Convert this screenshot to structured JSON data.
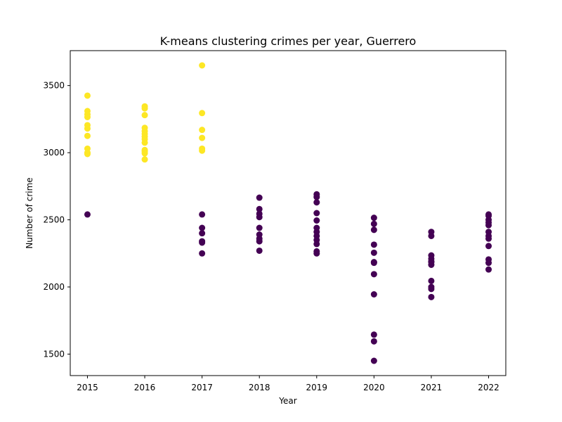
{
  "chart_data": {
    "type": "scatter",
    "title": "K-means clustering crimes per year, Guerrero",
    "xlabel": "Year",
    "ylabel": "Number of crime",
    "xlim": [
      2014.7,
      2022.3
    ],
    "ylim": [
      1340,
      3760
    ],
    "xticks": [
      2015,
      2016,
      2017,
      2018,
      2019,
      2020,
      2021,
      2022
    ],
    "yticks": [
      1500,
      2000,
      2500,
      3000,
      3500
    ],
    "grid": false,
    "cluster_colors": {
      "0": "#440154",
      "1": "#fde725"
    },
    "series": [
      {
        "name": "Cluster 0",
        "cluster": 0,
        "x": [
          2015,
          2017,
          2017,
          2017,
          2017,
          2017,
          2017,
          2018,
          2018,
          2018,
          2018,
          2018,
          2018,
          2018,
          2018,
          2018,
          2019,
          2019,
          2019,
          2019,
          2019,
          2019,
          2019,
          2019,
          2019,
          2019,
          2019,
          2019,
          2020,
          2020,
          2020,
          2020,
          2020,
          2020,
          2020,
          2020,
          2020,
          2020,
          2020,
          2020,
          2021,
          2021,
          2021,
          2021,
          2021,
          2021,
          2021,
          2021,
          2021,
          2021,
          2021,
          2022,
          2022,
          2022,
          2022,
          2022,
          2022,
          2022,
          2022,
          2022,
          2022,
          2022,
          2022
        ],
        "y": [
          2540,
          2540,
          2440,
          2400,
          2340,
          2330,
          2250,
          2665,
          2580,
          2545,
          2520,
          2440,
          2390,
          2360,
          2340,
          2270,
          2690,
          2670,
          2630,
          2550,
          2495,
          2440,
          2410,
          2380,
          2350,
          2320,
          2265,
          2250,
          2515,
          2470,
          2425,
          2315,
          2255,
          2185,
          2180,
          2095,
          1945,
          1645,
          1595,
          1450,
          2410,
          2380,
          2235,
          2210,
          2190,
          2165,
          2045,
          2000,
          1985,
          1925,
          2185,
          2540,
          2530,
          2500,
          2480,
          2460,
          2410,
          2380,
          2360,
          2305,
          2205,
          2180,
          2130
        ]
      },
      {
        "name": "Cluster 1",
        "cluster": 1,
        "x": [
          2015,
          2015,
          2015,
          2015,
          2015,
          2015,
          2015,
          2015,
          2015,
          2015,
          2016,
          2016,
          2016,
          2016,
          2016,
          2016,
          2016,
          2016,
          2016,
          2016,
          2016,
          2016,
          2016,
          2017,
          2017,
          2017,
          2017,
          2017,
          2017
        ],
        "y": [
          3425,
          3310,
          3285,
          3265,
          3205,
          3180,
          3125,
          3030,
          3000,
          2990,
          3345,
          3330,
          3280,
          3185,
          3160,
          3140,
          3120,
          3100,
          3075,
          3020,
          3010,
          2995,
          2950,
          3650,
          3295,
          3170,
          3110,
          3030,
          3015
        ]
      }
    ]
  }
}
